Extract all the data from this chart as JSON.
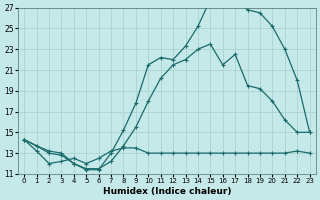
{
  "title": "",
  "xlabel": "Humidex (Indice chaleur)",
  "ylabel": "",
  "bg_color": "#c5e8e8",
  "line_color": "#1a6b6b",
  "grid_color": "#a8cece",
  "xlim": [
    -0.5,
    23.5
  ],
  "ylim": [
    11,
    27
  ],
  "xticks": [
    0,
    1,
    2,
    3,
    4,
    5,
    6,
    7,
    8,
    9,
    10,
    11,
    12,
    13,
    14,
    15,
    16,
    17,
    18,
    19,
    20,
    21,
    22,
    23
  ],
  "yticks": [
    11,
    13,
    15,
    17,
    19,
    21,
    23,
    25,
    27
  ],
  "line1_x": [
    0,
    1,
    2,
    3,
    4,
    5,
    6,
    7,
    8,
    9,
    10,
    11,
    12,
    13,
    14,
    15,
    16,
    17,
    18,
    19,
    20,
    21,
    22,
    23
  ],
  "line1_y": [
    14.3,
    13.7,
    13.2,
    13.0,
    12.0,
    11.4,
    11.4,
    13.0,
    15.2,
    17.8,
    21.5,
    22.2,
    22.0,
    23.3,
    25.2,
    27.8,
    27.5,
    27.8,
    26.8,
    26.5,
    25.2,
    23.0,
    20.0,
    15.0
  ],
  "line2_x": [
    0,
    1,
    2,
    3,
    4,
    5,
    6,
    7,
    8,
    9,
    10,
    11,
    12,
    13,
    14,
    15,
    16,
    17,
    18,
    19,
    20,
    21,
    22,
    23
  ],
  "line2_y": [
    14.3,
    13.7,
    13.0,
    12.8,
    12.0,
    11.5,
    11.5,
    12.2,
    13.7,
    15.5,
    18.0,
    20.2,
    21.5,
    22.0,
    23.0,
    23.5,
    21.5,
    22.5,
    19.5,
    19.2,
    18.0,
    16.2,
    15.0,
    15.0
  ],
  "line3_x": [
    0,
    1,
    2,
    3,
    4,
    5,
    6,
    7,
    8,
    9,
    10,
    11,
    12,
    13,
    14,
    15,
    16,
    17,
    18,
    19,
    20,
    21,
    22,
    23
  ],
  "line3_y": [
    14.3,
    13.2,
    12.0,
    12.2,
    12.5,
    12.0,
    12.5,
    13.2,
    13.5,
    13.5,
    13.0,
    13.0,
    13.0,
    13.0,
    13.0,
    13.0,
    13.0,
    13.0,
    13.0,
    13.0,
    13.0,
    13.0,
    13.2,
    13.0
  ]
}
